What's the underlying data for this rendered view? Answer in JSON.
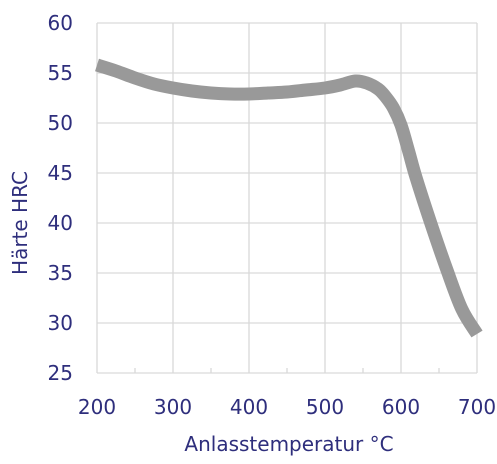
{
  "chart_data": {
    "type": "line",
    "title": "",
    "xlabel": "Anlasstemperatur °C",
    "ylabel": "Härte HRC",
    "xlim": [
      200,
      700
    ],
    "ylim": [
      25,
      60
    ],
    "x_ticks": [
      200,
      300,
      400,
      500,
      600,
      700
    ],
    "y_ticks": [
      25,
      30,
      35,
      40,
      45,
      50,
      55,
      60
    ],
    "x_minor_step": 50,
    "grid": true,
    "legend": "none",
    "series": [
      {
        "x": [
          200,
          225,
          250,
          275,
          300,
          325,
          350,
          375,
          400,
          425,
          450,
          475,
          500,
          520,
          540,
          555,
          570,
          580,
          590,
          600,
          610,
          620,
          640,
          660,
          680,
          700
        ],
        "y": [
          55.8,
          55.2,
          54.5,
          53.9,
          53.5,
          53.2,
          53.0,
          52.9,
          52.9,
          53.0,
          53.1,
          53.3,
          53.5,
          53.8,
          54.2,
          54.0,
          53.4,
          52.6,
          51.5,
          49.8,
          47.2,
          44.5,
          39.8,
          35.4,
          31.4,
          28.9
        ]
      }
    ],
    "colors": {
      "line": "#999999",
      "grid": "#d9d9d9",
      "axis_text": "#2e2e7c"
    }
  }
}
